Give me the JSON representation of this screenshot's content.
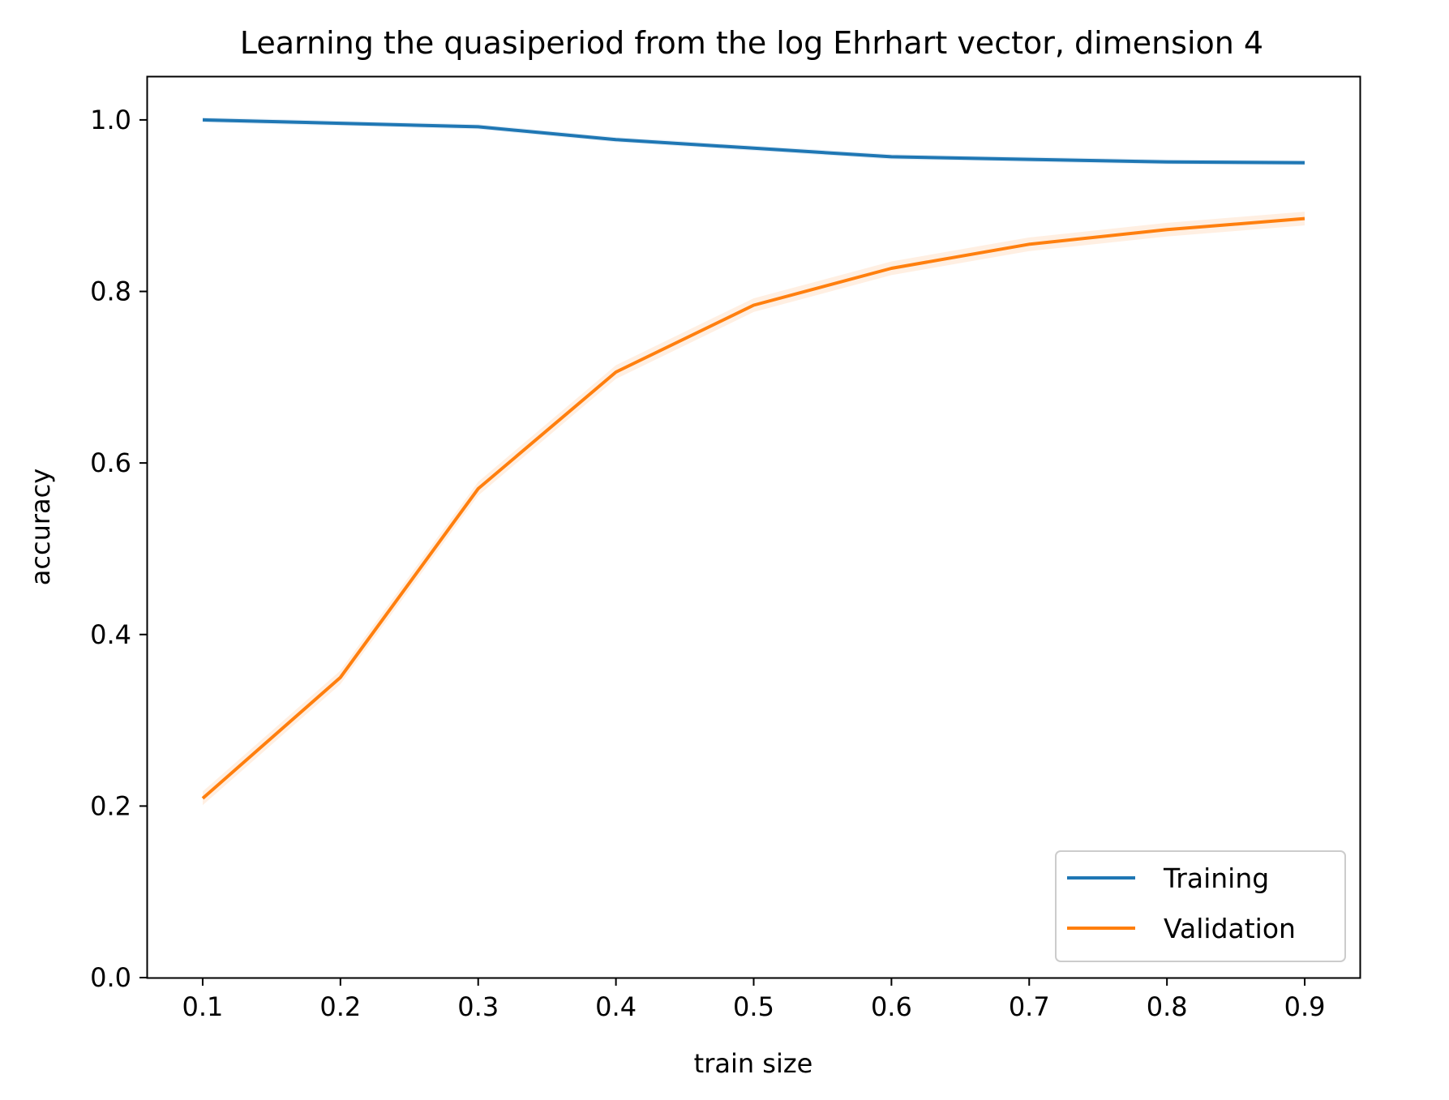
{
  "chart_data": {
    "type": "line",
    "title": "Learning the quasiperiod from the log Ehrhart vector, dimension 4",
    "xlabel": "train size",
    "ylabel": "accuracy",
    "xlim": [
      0.06,
      0.94
    ],
    "ylim": [
      0.0,
      1.05
    ],
    "xticks": [
      0.1,
      0.2,
      0.3,
      0.4,
      0.5,
      0.6,
      0.7,
      0.8,
      0.9
    ],
    "xtick_labels": [
      "0.1",
      "0.2",
      "0.3",
      "0.4",
      "0.5",
      "0.6",
      "0.7",
      "0.8",
      "0.9"
    ],
    "yticks": [
      0.0,
      0.2,
      0.4,
      0.6,
      0.8,
      1.0
    ],
    "ytick_labels": [
      "0.0",
      "0.2",
      "0.4",
      "0.6",
      "0.8",
      "1.0"
    ],
    "grid": false,
    "legend_position": "lower-right",
    "x": [
      0.1,
      0.2,
      0.3,
      0.4,
      0.5,
      0.6,
      0.7,
      0.8,
      0.9
    ],
    "series": [
      {
        "name": "Training",
        "color": "#1f77b4",
        "values": [
          1.0,
          0.996,
          0.992,
          0.977,
          0.967,
          0.957,
          0.954,
          0.951,
          0.95
        ],
        "band": 0.003
      },
      {
        "name": "Validation",
        "color": "#ff7f0e",
        "values": [
          0.209,
          0.35,
          0.57,
          0.706,
          0.784,
          0.827,
          0.855,
          0.872,
          0.885
        ],
        "band": 0.008
      }
    ]
  }
}
